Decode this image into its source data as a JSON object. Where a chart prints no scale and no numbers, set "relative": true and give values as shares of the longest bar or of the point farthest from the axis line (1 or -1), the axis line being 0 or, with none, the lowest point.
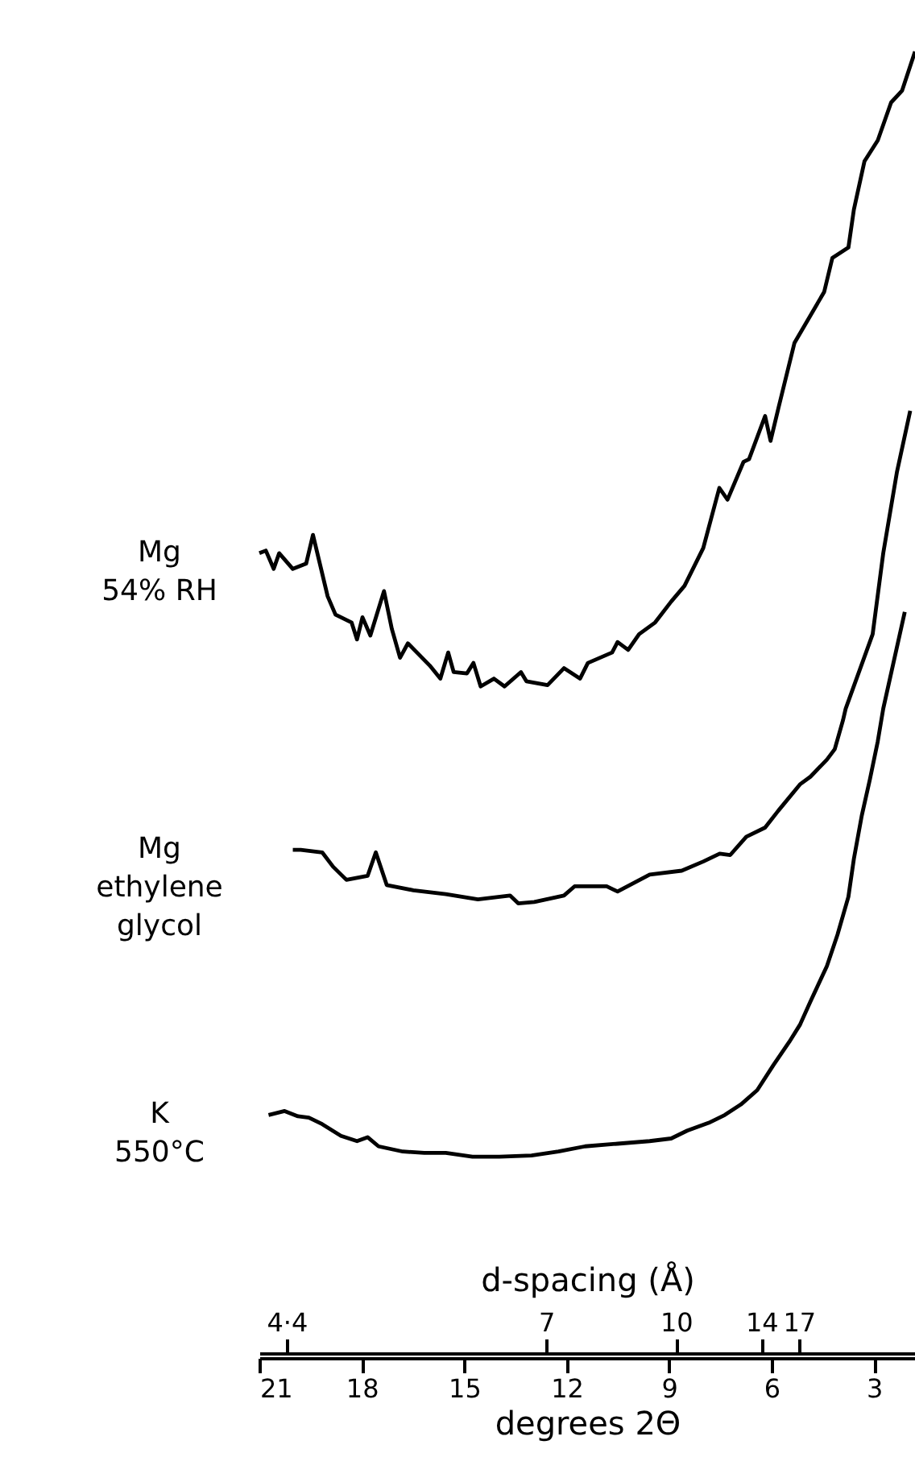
{
  "chart_data": {
    "type": "line",
    "relative": true,
    "xlabel": "degrees 2Θ",
    "x2label": "d-spacing (Å)",
    "xlim": [
      21,
      1.8
    ],
    "xticks": [
      21,
      18,
      15,
      12,
      9,
      6,
      3
    ],
    "annotations": [
      {
        "text": "4·4",
        "x": 20.2
      },
      {
        "text": "7",
        "x": 12.6
      },
      {
        "text": "10",
        "x": 8.8
      },
      {
        "text": "14",
        "x": 6.3
      },
      {
        "text": "17",
        "x": 5.2
      }
    ],
    "legend": false,
    "grid": false,
    "series": [
      {
        "name": "Mg\n54% RH",
        "color": "#000000",
        "x": [
          21.0,
          20.81,
          20.58,
          20.42,
          20.02,
          19.63,
          19.43,
          19.0,
          18.77,
          18.3,
          18.14,
          17.98,
          17.75,
          17.35,
          17.12,
          16.88,
          16.65,
          16.01,
          15.7,
          15.47,
          15.31,
          14.92,
          14.73,
          14.52,
          14.13,
          13.82,
          13.34,
          13.18,
          12.56,
          12.08,
          11.61,
          11.38,
          10.67,
          10.51,
          10.2,
          9.88,
          9.41,
          8.94,
          8.55,
          8.0,
          7.53,
          7.29,
          6.82,
          6.66,
          6.19,
          6.03,
          5.8,
          5.33,
          4.46,
          4.22,
          3.75,
          3.59,
          3.28,
          2.89,
          2.5,
          2.18,
          1.8
        ],
        "values": [
          0.616,
          0.618,
          0.604,
          0.616,
          0.604,
          0.608,
          0.63,
          0.583,
          0.569,
          0.563,
          0.55,
          0.567,
          0.553,
          0.587,
          0.558,
          0.536,
          0.547,
          0.53,
          0.52,
          0.54,
          0.525,
          0.524,
          0.532,
          0.514,
          0.52,
          0.514,
          0.525,
          0.518,
          0.515,
          0.528,
          0.52,
          0.532,
          0.54,
          0.548,
          0.542,
          0.554,
          0.563,
          0.579,
          0.591,
          0.62,
          0.666,
          0.657,
          0.686,
          0.688,
          0.721,
          0.702,
          0.727,
          0.777,
          0.816,
          0.842,
          0.85,
          0.879,
          0.916,
          0.932,
          0.961,
          0.97,
          1
        ]
      },
      {
        "name": "Mg\nethylene\nglycol",
        "color": "#000000",
        "x": [
          20.02,
          19.79,
          19.16,
          18.84,
          18.45,
          17.83,
          17.59,
          17.27,
          16.49,
          15.54,
          14.6,
          13.66,
          13.42,
          12.95,
          12.08,
          11.77,
          10.83,
          10.51,
          9.57,
          8.63,
          8.0,
          7.52,
          7.21,
          6.74,
          6.19,
          5.8,
          5.17,
          4.86,
          4.38,
          4.15,
          3.91,
          3.83,
          3.04,
          2.73,
          2.33,
          1.94
        ],
        "values": [
          0.389,
          0.389,
          0.387,
          0.376,
          0.366,
          0.369,
          0.387,
          0.362,
          0.358,
          0.355,
          0.351,
          0.354,
          0.348,
          0.349,
          0.354,
          0.361,
          0.361,
          0.357,
          0.37,
          0.373,
          0.38,
          0.386,
          0.385,
          0.399,
          0.406,
          0.419,
          0.439,
          0.445,
          0.458,
          0.466,
          0.488,
          0.497,
          0.554,
          0.616,
          0.678,
          0.725
        ]
      },
      {
        "name": "K\n550°C",
        "color": "#000000",
        "x": [
          20.73,
          20.26,
          19.87,
          19.55,
          19.16,
          18.61,
          18.14,
          17.83,
          17.51,
          16.8,
          16.17,
          15.54,
          14.76,
          13.97,
          13.03,
          12.24,
          11.46,
          10.51,
          9.57,
          8.94,
          8.47,
          7.84,
          7.37,
          6.9,
          6.42,
          5.95,
          5.48,
          5.17,
          4.86,
          4.38,
          4.07,
          3.75,
          3.59,
          3.36,
          3.12,
          2.89,
          2.73,
          2.1
        ],
        "values": [
          0.186,
          0.189,
          0.185,
          0.184,
          0.179,
          0.17,
          0.166,
          0.169,
          0.162,
          0.158,
          0.157,
          0.157,
          0.154,
          0.154,
          0.155,
          0.158,
          0.162,
          0.164,
          0.166,
          0.168,
          0.174,
          0.18,
          0.186,
          0.194,
          0.205,
          0.224,
          0.242,
          0.255,
          0.273,
          0.3,
          0.324,
          0.353,
          0.382,
          0.415,
          0.443,
          0.472,
          0.497,
          0.571
        ]
      }
    ]
  }
}
